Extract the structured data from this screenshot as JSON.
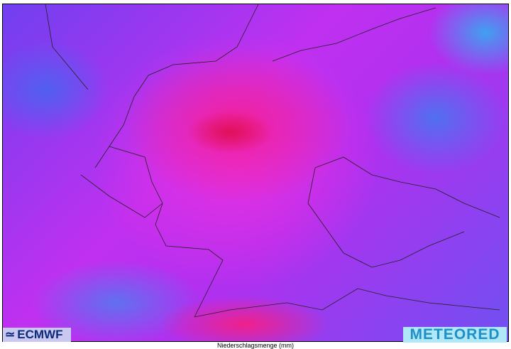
{
  "map": {
    "variable": "precipitation",
    "colors": {
      "low": "#40a0f0",
      "mid": "#7040f0",
      "high": "#f020c0",
      "max": "#e0105a"
    }
  },
  "logos": {
    "left": "ECMWF",
    "right": "METEORED"
  },
  "caption": "Niederschlagsmenge (mm)"
}
